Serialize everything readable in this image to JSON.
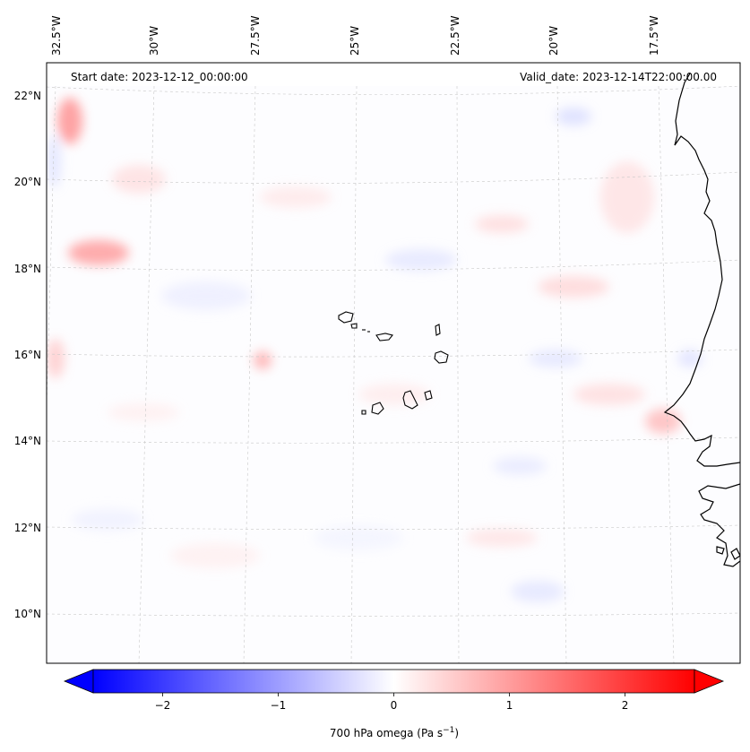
{
  "header": {
    "start_date": "Start date: 2023-12-12_00:00:00",
    "valid_date": "Valid_date: 2023-12-14T22:00:00.00"
  },
  "lon_labels": [
    "32.5°W",
    "30°W",
    "27.5°W",
    "25°W",
    "22.5°W",
    "20°W",
    "17.5°W"
  ],
  "lat_labels": [
    "22°N",
    "20°N",
    "18°N",
    "16°N",
    "14°N",
    "12°N",
    "10°N"
  ],
  "colorbar": {
    "label": "700 hPa omega (Pa s",
    "label_exponent": "−1",
    "label_suffix": ")",
    "ticks": [
      "−2",
      "−1",
      "0",
      "1",
      "2"
    ],
    "tick_values": [
      -2,
      -1,
      0,
      1,
      2
    ],
    "vmin": -2.6,
    "vmax": 2.6,
    "colormap": "bwr",
    "min_color": "#0000ff",
    "mid_color": "#ffffff",
    "max_color": "#ff0000"
  },
  "colors": {
    "coastline": "#000000",
    "gridline": "#c8c8c8",
    "ocean_background": "#fdfdff"
  }
}
